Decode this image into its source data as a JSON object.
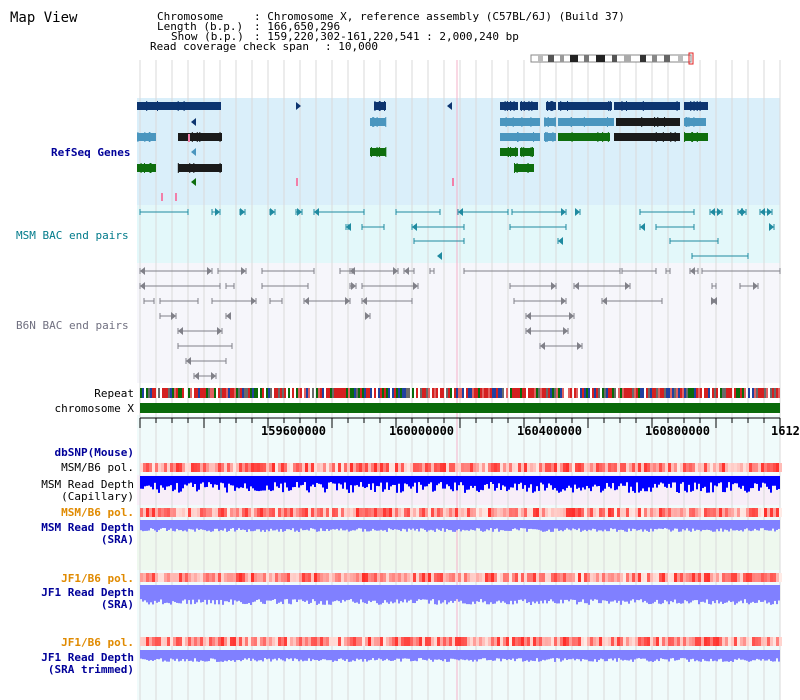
{
  "page": {
    "title": "Map View"
  },
  "info": {
    "chromosome_key": "Chromosome",
    "chromosome_val": ": Chromosome X, reference assembly (C57BL/6J) (Build 37)",
    "length_key": "Length (b.p.)",
    "length_val": ": 166,650,296",
    "show_key": "Show (b.p.)",
    "show_val": ": 159,220,302-161,220,541 : 2,000,240 bp",
    "coverage_key": "Read coverage check span",
    "coverage_val": ": 10,000"
  },
  "tracks": {
    "refseq": "RefSeq Genes",
    "msm_bac": "MSM BAC end pairs",
    "b6n_bac": "B6N BAC end pairs",
    "repeat": "Repeat",
    "chromosome": "chromosome X",
    "dbsnp": "dbSNP(Mouse)",
    "msm_b6_pol_1": "MSM/B6 pol.",
    "msm_read_depth_cap_1": "MSM Read Depth",
    "msm_read_depth_cap_2": "(Capillary)",
    "msm_b6_pol_2": "MSM/B6 pol.",
    "msm_read_depth_sra_1": "MSM Read Depth",
    "msm_read_depth_sra_2": "(SRA)",
    "jf1_b6_pol_1": "JF1/B6 pol.",
    "jf1_read_depth_sra_1": "JF1 Read Depth",
    "jf1_read_depth_sra_2": "(SRA)",
    "jf1_b6_pol_2": "JF1/B6 pol.",
    "jf1_read_depth_trim_1": "JF1 Read Depth",
    "jf1_read_depth_trim_2": "(SRA trimmed)"
  },
  "ruler": {
    "ticks": [
      "159600000",
      "160000000",
      "160400000",
      "160800000",
      "1612"
    ]
  },
  "colors": {
    "refseq_bg": "#daeffa",
    "msm_bac_bg": "#e3f8fa",
    "b6n_bac_bg": "#f6f6fb",
    "lower_bg": "#f0fbfb",
    "refseq_dark": "#0d3570",
    "refseq_mid": "#4a96bf",
    "refseq_green": "#0e6e0e",
    "msm_label": "#007a8a",
    "b6n_label": "#707080",
    "navy_label": "#000099",
    "orange_label": "#e08a00",
    "chromosome_bar": "#0a6a0a",
    "capillary_depth": "#0000ff",
    "sra_depth": "#8080ff"
  }
}
